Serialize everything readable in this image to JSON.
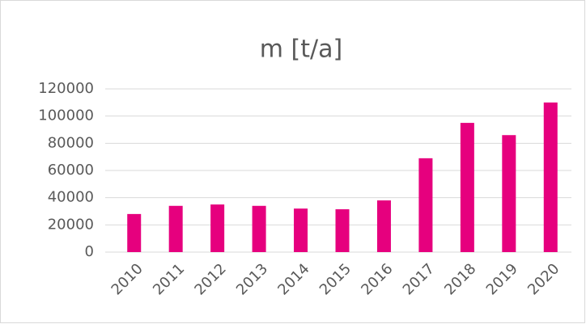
{
  "chart_data": {
    "type": "bar",
    "title": "m [t/a]",
    "categories": [
      "2010",
      "2011",
      "2012",
      "2013",
      "2014",
      "2015",
      "2016",
      "2017",
      "2018",
      "2019",
      "2020"
    ],
    "values": [
      28000,
      34000,
      35000,
      34000,
      32000,
      31500,
      38000,
      69000,
      95000,
      86000,
      110000
    ],
    "color": "#e6007e",
    "ylim": [
      0,
      120000
    ],
    "yticks": [
      0,
      20000,
      40000,
      60000,
      80000,
      100000,
      120000
    ],
    "grid": true
  }
}
